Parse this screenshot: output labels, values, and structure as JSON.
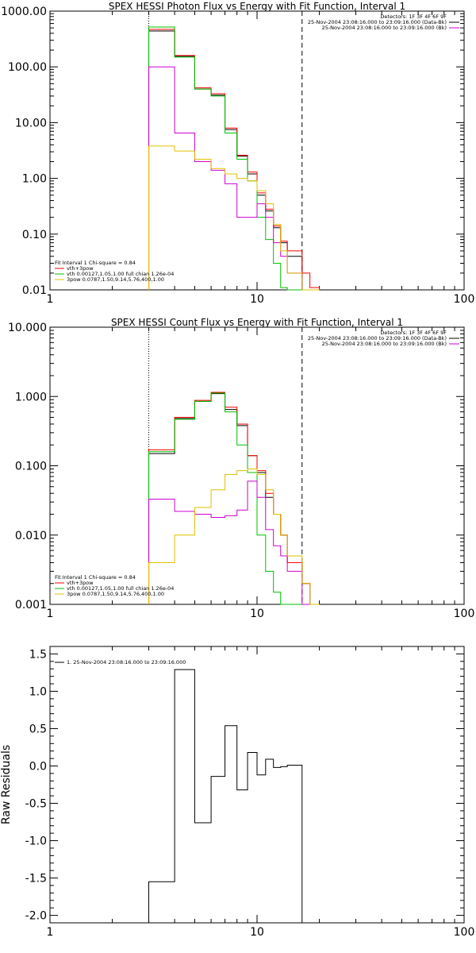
{
  "chart_data": [
    {
      "type": "line",
      "title": "SPEX HESSI Photon Flux vs Energy with Fit Function, Interval 1",
      "xscale": "log",
      "yscale": "log",
      "xlim": [
        1,
        100
      ],
      "ylim": [
        0.01,
        1000
      ],
      "xticks": [
        1,
        10,
        100
      ],
      "xtick_labels": [
        "1",
        "10",
        "100"
      ],
      "yticks": [
        0.01,
        0.1,
        1,
        10,
        100,
        1000
      ],
      "ytick_labels": [
        "0.01",
        "0.10",
        "1.00",
        "10.00",
        "100.00",
        "1000.00"
      ],
      "vlines": [
        {
          "x": 3.0,
          "style": "dotted"
        },
        {
          "x": 16.5,
          "style": "dashed"
        }
      ],
      "legend_top_right": [
        {
          "text": "Detectors: 1F 3F 4F 6F 9F",
          "color": "#000000"
        },
        {
          "text": "25-Nov-2004 23:08:16.000 to 23:09:16.000 (Data-Bk)",
          "color": "#000000"
        },
        {
          "text": "25-Nov-2004 23:08:16.000 to 23:09:16.000 (Bk)",
          "color": "#d000d0"
        }
      ],
      "legend_bottom_left": [
        {
          "text": "Fit Interval 1   Chi-square = 0.84",
          "color": "#000000"
        },
        {
          "text": "vth+3pow",
          "color": "#ff0000"
        },
        {
          "text": "vth 0.00127,1.05,1.00  full chian 1.26e-04",
          "color": "#00c000"
        },
        {
          "text": "3pow 0.0787,1.50,9.14,5.76,400,1.00",
          "color": "#e0c000"
        }
      ],
      "bin_edges": [
        3.0,
        4.0,
        5.0,
        6.0,
        7.0,
        8.0,
        9.0,
        10.0,
        11.0,
        12.0,
        13.0,
        14.0,
        16.5,
        18.0,
        20.0
      ],
      "series": [
        {
          "color": "#000000",
          "values": [
            440,
            155,
            40,
            31,
            7.5,
            2.5,
            1.2,
            0.5,
            0.26,
            0.13,
            0.07,
            0.04,
            0.01,
            0.01
          ]
        },
        {
          "color": "#ff0000",
          "values": [
            470,
            160,
            42,
            33,
            8.0,
            2.6,
            1.3,
            0.55,
            0.28,
            0.14,
            0.075,
            0.05,
            0.02,
            0.011
          ]
        },
        {
          "color": "#00c000",
          "values": [
            520,
            150,
            40,
            30,
            6.5,
            2.2,
            0.9,
            0.2,
            0.08,
            0.03,
            0.011,
            0.01,
            0.01,
            0.01
          ]
        },
        {
          "color": "#d000d0",
          "values": [
            100,
            6.5,
            2.0,
            1.4,
            0.8,
            0.2,
            0.2,
            0.35,
            0.2,
            0.07,
            0.04,
            0.02,
            0.01,
            0.01
          ]
        },
        {
          "color": "#e0c000",
          "values": [
            3.8,
            3.1,
            2.2,
            1.5,
            1.2,
            1.0,
            0.9,
            0.6,
            0.35,
            0.15,
            0.05,
            0.02,
            0.01,
            0.01
          ]
        }
      ]
    },
    {
      "type": "line",
      "title": "SPEX HESSI Count Flux vs Energy with Fit Function, Interval 1",
      "xscale": "log",
      "yscale": "log",
      "xlim": [
        1,
        100
      ],
      "ylim": [
        0.001,
        10
      ],
      "xticks": [
        1,
        10,
        100
      ],
      "xtick_labels": [
        "1",
        "10",
        "100"
      ],
      "yticks": [
        0.001,
        0.01,
        0.1,
        1,
        10
      ],
      "ytick_labels": [
        "0.001",
        "0.010",
        "0.100",
        "1.000",
        "10.000"
      ],
      "vlines": [
        {
          "x": 3.0,
          "style": "dotted"
        },
        {
          "x": 16.5,
          "style": "dashed"
        }
      ],
      "legend_top_right": [
        {
          "text": "Detectors: 1F 3F 4F 6F 9F",
          "color": "#000000"
        },
        {
          "text": "25-Nov-2004 23:08:16.000 to 23:09:16.000 (Data-Bk)",
          "color": "#000000"
        },
        {
          "text": "25-Nov-2004 23:08:16.000 to 23:09:16.000 (Bk)",
          "color": "#d000d0"
        }
      ],
      "legend_bottom_left": [
        {
          "text": "Fit Interval 1   Chi-square = 0.84",
          "color": "#000000"
        },
        {
          "text": "vth+3pow",
          "color": "#ff0000"
        },
        {
          "text": "vth 0.00127,1.05,1.00  full chian 1.26e-04",
          "color": "#00c000"
        },
        {
          "text": "3pow 0.0787,1.50,9.14,5.76,400,1.00",
          "color": "#e0c000"
        }
      ],
      "bin_edges": [
        3.0,
        4.0,
        5.0,
        6.0,
        7.0,
        8.0,
        9.0,
        10.0,
        11.0,
        12.0,
        13.0,
        14.0,
        16.5,
        18.0,
        20.0
      ],
      "series": [
        {
          "color": "#000000",
          "values": [
            0.15,
            0.48,
            0.85,
            1.1,
            0.65,
            0.38,
            0.14,
            0.08,
            0.035,
            0.02,
            0.01,
            0.004,
            0.002,
            0.001
          ]
        },
        {
          "color": "#ff0000",
          "values": [
            0.17,
            0.5,
            0.88,
            1.15,
            0.7,
            0.4,
            0.14,
            0.085,
            0.04,
            0.02,
            0.01,
            0.004,
            0.002,
            0.001
          ]
        },
        {
          "color": "#00c000",
          "values": [
            0.16,
            0.47,
            0.85,
            1.12,
            0.6,
            0.2,
            0.08,
            0.01,
            0.003,
            0.0015,
            0.001,
            0.001,
            0.001,
            0.001
          ]
        },
        {
          "color": "#d000d0",
          "values": [
            0.033,
            0.022,
            0.02,
            0.018,
            0.019,
            0.023,
            0.06,
            0.035,
            0.012,
            0.007,
            0.005,
            0.003,
            0.001,
            0.001
          ]
        },
        {
          "color": "#e0c000",
          "values": [
            0.004,
            0.01,
            0.025,
            0.045,
            0.075,
            0.085,
            0.09,
            0.075,
            0.045,
            0.02,
            0.01,
            0.005,
            0.002,
            0.001
          ]
        }
      ]
    },
    {
      "type": "line",
      "title": "",
      "xscale": "log",
      "yscale": "linear",
      "xlim": [
        1,
        100
      ],
      "ylim": [
        -2.1,
        1.6
      ],
      "xticks": [
        1,
        10,
        100
      ],
      "xtick_labels": [
        "1",
        "10",
        "100"
      ],
      "yticks": [
        -2.0,
        -1.5,
        -1.0,
        -0.5,
        0.0,
        0.5,
        1.0,
        1.5
      ],
      "ytick_labels": [
        "-2.0",
        "-1.5",
        "-1.0",
        "-0.5",
        "0.0",
        "0.5",
        "1.0",
        "1.5"
      ],
      "ylabel": "Raw Residuals",
      "legend_top_left": [
        {
          "text": "1. 25-Nov-2004 23:08:16.000 to 23:09:16.000",
          "color": "#000000"
        }
      ],
      "bin_edges": [
        3.0,
        4.0,
        5.0,
        6.0,
        7.0,
        8.0,
        9.0,
        10.0,
        11.0,
        12.0,
        13.0,
        14.0,
        16.5
      ],
      "series": [
        {
          "color": "#000000",
          "values": [
            -1.55,
            1.29,
            -0.76,
            -0.14,
            0.54,
            -0.32,
            0.18,
            -0.12,
            0.09,
            -0.02,
            -0.01,
            0.01
          ]
        }
      ],
      "end_drop_to": -2.1
    }
  ]
}
